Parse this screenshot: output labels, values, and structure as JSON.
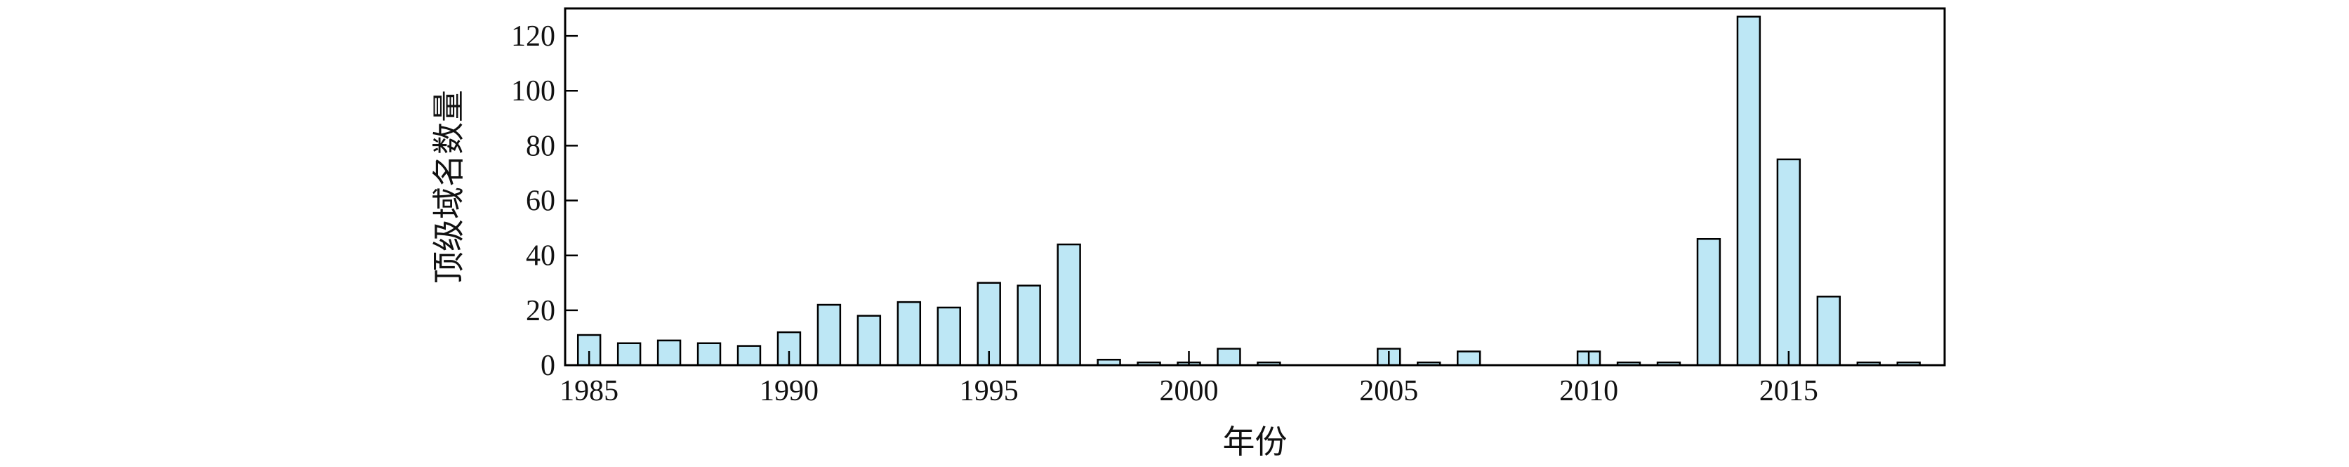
{
  "chart_data": {
    "type": "bar",
    "xlabel": "年份",
    "ylabel": "顶级域名数量",
    "ylim": [
      0,
      130
    ],
    "xlim": [
      1984.4,
      2018.9
    ],
    "x_ticks": [
      "1985",
      "1990",
      "1995",
      "2000",
      "2005",
      "2010",
      "2015"
    ],
    "y_ticks": [
      "0",
      "20",
      "40",
      "60",
      "80",
      "100",
      "120"
    ],
    "years": [
      1985,
      1986,
      1987,
      1988,
      1989,
      1990,
      1991,
      1992,
      1993,
      1994,
      1995,
      1996,
      1997,
      1998,
      1999,
      2000,
      2001,
      2002,
      2005,
      2006,
      2007,
      2010,
      2011,
      2012,
      2013,
      2014,
      2015,
      2016,
      2017,
      2018
    ],
    "values": [
      11,
      8,
      9,
      8,
      7,
      12,
      22,
      18,
      23,
      21,
      30,
      29,
      44,
      2,
      1,
      1,
      6,
      1,
      6,
      1,
      5,
      5,
      1,
      1,
      46,
      127,
      75,
      25,
      1,
      1
    ],
    "grid": false,
    "legend": "none",
    "bar_color": "#bde7f5",
    "edge_color": "#000000"
  }
}
